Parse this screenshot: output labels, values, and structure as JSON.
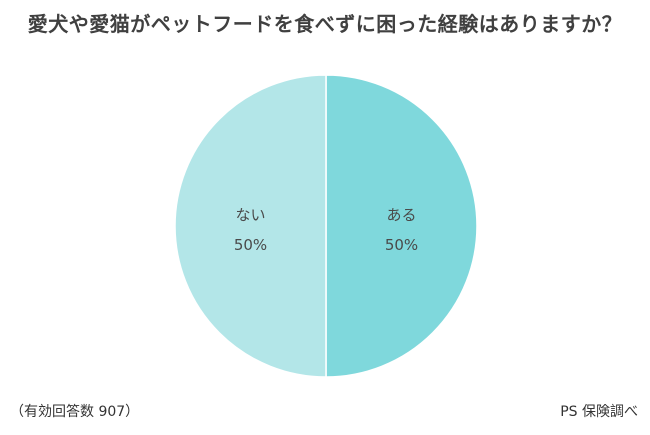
{
  "chart_data": {
    "type": "pie",
    "title": "愛犬や愛猫がペットフードを食べずに困った経験はありますか？",
    "slices": [
      {
        "label": "ある",
        "value": 50,
        "value_label": "50%",
        "color": "#7fd8dc"
      },
      {
        "label": "ない",
        "value": 50,
        "value_label": "50%",
        "color": "#b3e6e8"
      }
    ],
    "start": "12 o'clock",
    "direction": "clockwise"
  },
  "footer": {
    "note": "（有効回答数 907）",
    "source": "PS 保険調べ"
  }
}
